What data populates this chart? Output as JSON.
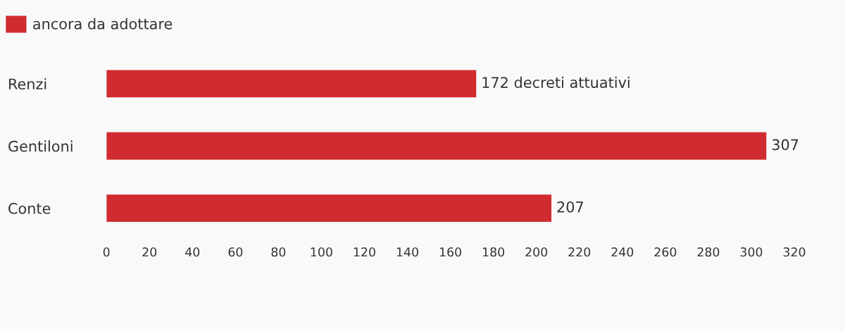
{
  "chart_data": {
    "type": "bar",
    "orientation": "horizontal",
    "categories": [
      "Renzi",
      "Gentiloni",
      "Conte"
    ],
    "series": [
      {
        "name": "ancora da adottare",
        "color": "#d02b30",
        "values": [
          172,
          307,
          207
        ],
        "value_labels": [
          "172 decreti attuativi",
          "307",
          "207"
        ]
      }
    ],
    "xlim": [
      0,
      320
    ],
    "xticks": [
      0,
      20,
      40,
      60,
      80,
      100,
      120,
      140,
      160,
      180,
      200,
      220,
      240,
      260,
      280,
      300,
      320
    ],
    "grid": false,
    "legend": "top left"
  }
}
